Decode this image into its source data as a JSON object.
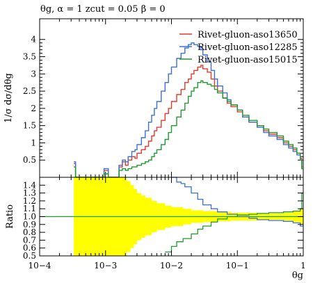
{
  "chart_data": [
    {
      "type": "line",
      "panel": "main",
      "title": "θg, α = 1 zcut = 0.05 β = 0",
      "xlabel": "θg",
      "ylabel": "1/σ dσ/dθg",
      "xscale": "log",
      "xlim": [
        0.0001,
        1
      ],
      "ylim": [
        0,
        4.6
      ],
      "yticks": [
        0.5,
        1,
        1.5,
        2,
        2.5,
        3,
        3.5,
        4
      ],
      "ytick_labels": [
        "0.5",
        "1",
        "1.5",
        "2",
        "2.5",
        "3",
        "3.5",
        "4"
      ],
      "xtick_labels": [
        "10−4",
        "10−3",
        "10−2",
        "10−1",
        "1"
      ],
      "legend_position": "top-right",
      "histogram_step": true,
      "x": [
        0.00033,
        0.00035,
        0.00095,
        0.0011,
        0.0016,
        0.0018,
        0.002,
        0.0022,
        0.0025,
        0.0028,
        0.003,
        0.0035,
        0.004,
        0.0045,
        0.005,
        0.0055,
        0.006,
        0.007,
        0.008,
        0.009,
        0.01,
        0.012,
        0.014,
        0.016,
        0.018,
        0.02,
        0.022,
        0.025,
        0.028,
        0.03,
        0.035,
        0.04,
        0.045,
        0.05,
        0.06,
        0.07,
        0.08,
        0.1,
        0.12,
        0.15,
        0.2,
        0.25,
        0.3,
        0.4,
        0.5,
        0.6,
        0.7,
        0.8,
        0.9,
        0.95,
        1.0
      ],
      "series": [
        {
          "name": "Rivet-gluon-aso13650",
          "color": "#e8392a",
          "values": [
            0.4,
            0.0,
            0.2,
            0.0,
            0.3,
            0.45,
            0.35,
            0.5,
            0.6,
            0.55,
            0.7,
            0.8,
            0.9,
            1.05,
            1.2,
            1.35,
            1.45,
            1.65,
            1.85,
            2.0,
            2.2,
            2.4,
            2.55,
            2.75,
            2.85,
            3.0,
            3.1,
            3.2,
            3.25,
            3.15,
            3.05,
            2.85,
            2.65,
            2.5,
            2.3,
            2.15,
            2.05,
            1.9,
            1.75,
            1.6,
            1.5,
            1.35,
            1.25,
            1.15,
            1.0,
            0.9,
            0.8,
            0.7,
            0.55,
            0.3,
            0.05
          ]
        },
        {
          "name": "Rivet-gluon-aso12285",
          "color": "#3a6fe0",
          "values": [
            0.45,
            0.0,
            0.25,
            0.0,
            0.35,
            0.5,
            0.45,
            0.6,
            0.75,
            0.8,
            0.95,
            1.15,
            1.35,
            1.6,
            1.8,
            2.0,
            2.2,
            2.5,
            2.75,
            3.0,
            3.2,
            3.45,
            3.6,
            3.75,
            3.85,
            3.9,
            3.85,
            3.8,
            3.7,
            3.55,
            3.35,
            3.1,
            2.85,
            2.65,
            2.45,
            2.25,
            2.1,
            1.95,
            1.75,
            1.6,
            1.45,
            1.3,
            1.2,
            1.1,
            0.95,
            0.85,
            0.75,
            0.65,
            0.5,
            0.25,
            0.03
          ]
        },
        {
          "name": "Rivet-gluon-aso15015",
          "color": "#1f9b2f",
          "values": [
            0.3,
            0.0,
            0.1,
            0.0,
            0.2,
            0.25,
            0.2,
            0.25,
            0.3,
            0.3,
            0.35,
            0.4,
            0.45,
            0.5,
            0.6,
            0.7,
            0.8,
            0.95,
            1.1,
            1.3,
            1.5,
            1.75,
            1.95,
            2.15,
            2.35,
            2.5,
            2.6,
            2.75,
            2.8,
            2.75,
            2.7,
            2.65,
            2.55,
            2.45,
            2.3,
            2.2,
            2.1,
            1.95,
            1.8,
            1.65,
            1.5,
            1.4,
            1.3,
            1.2,
            1.05,
            0.95,
            0.85,
            0.7,
            0.5,
            0.25,
            0.05
          ]
        }
      ]
    },
    {
      "type": "line",
      "panel": "ratio",
      "xlabel": "θg",
      "ylabel": "Ratio",
      "xscale": "log",
      "xlim": [
        0.0001,
        1
      ],
      "ylim": [
        0.5,
        1.5
      ],
      "yticks": [
        0.5,
        0.6,
        0.7,
        0.8,
        0.9,
        1.0,
        1.1,
        1.2,
        1.3,
        1.4
      ],
      "ytick_labels": [
        "0.5",
        "0.6",
        "0.7",
        "0.8",
        "0.9",
        "1.0",
        "1.1",
        "1.2",
        "1.3",
        "1.4"
      ],
      "xtick_labels": [
        "10−4",
        "10−3",
        "10−2",
        "10−1",
        "1"
      ],
      "uncertainty_band_color": "#ffff00",
      "band": {
        "x": [
          0.00033,
          0.00036,
          0.00095,
          0.00105,
          0.0017,
          0.0019,
          0.0021,
          0.0024,
          0.0027,
          0.003,
          0.0035,
          0.004,
          0.005,
          0.006,
          0.008,
          0.01,
          0.015,
          0.02,
          0.03,
          0.05,
          0.08,
          0.1,
          0.2,
          0.3,
          0.5,
          0.7,
          0.9,
          1.0
        ],
        "lower": [
          0.5,
          0.5,
          0.5,
          0.5,
          0.5,
          0.5,
          0.55,
          0.6,
          0.65,
          0.7,
          0.73,
          0.76,
          0.8,
          0.83,
          0.86,
          0.88,
          0.9,
          0.92,
          0.93,
          0.94,
          0.95,
          0.95,
          0.96,
          0.96,
          0.95,
          0.93,
          0.9,
          0.85
        ],
        "upper": [
          1.5,
          1.5,
          1.5,
          1.5,
          1.5,
          1.5,
          1.45,
          1.4,
          1.35,
          1.3,
          1.27,
          1.24,
          1.2,
          1.17,
          1.14,
          1.12,
          1.1,
          1.08,
          1.07,
          1.06,
          1.05,
          1.05,
          1.04,
          1.04,
          1.05,
          1.07,
          1.1,
          1.15
        ]
      },
      "reference_value": 1.0,
      "series": [
        {
          "name": "Rivet-gluon-aso12285",
          "color": "#3a6fe0",
          "x": [
            0.01,
            0.012,
            0.014,
            0.016,
            0.02,
            0.025,
            0.03,
            0.04,
            0.05,
            0.07,
            0.1,
            0.15,
            0.2,
            0.3,
            0.5,
            0.7,
            0.9,
            1.0
          ],
          "values": [
            1.5,
            1.44,
            1.42,
            1.38,
            1.3,
            1.22,
            1.15,
            1.1,
            1.06,
            1.03,
            1.0,
            0.98,
            0.96,
            0.95,
            0.94,
            0.92,
            0.88,
            0.82
          ]
        },
        {
          "name": "Rivet-gluon-aso15015",
          "color": "#1f9b2f",
          "x": [
            0.008,
            0.01,
            0.012,
            0.015,
            0.02,
            0.025,
            0.03,
            0.04,
            0.05,
            0.07,
            0.1,
            0.15,
            0.2,
            0.3,
            0.5,
            0.7,
            0.9,
            0.95,
            1.0
          ],
          "values": [
            0.55,
            0.62,
            0.68,
            0.72,
            0.78,
            0.84,
            0.88,
            0.93,
            0.97,
            1.0,
            1.02,
            1.03,
            1.04,
            1.05,
            1.06,
            1.07,
            1.1,
            1.3,
            1.45
          ]
        }
      ]
    }
  ]
}
